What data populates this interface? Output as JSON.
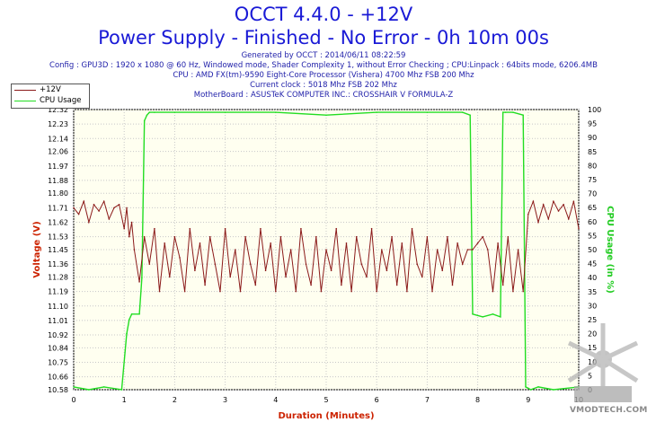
{
  "header": {
    "title": "OCCT 4.4.0 - +12V",
    "subtitle": "Power Supply - Finished - No Error - 0h 10m 00s",
    "info": [
      "Generated by OCCT : 2014/06/11 08:22:59",
      "Config : GPU3D : 1920 x 1080 @ 60 Hz, Windowed mode, Shader Complexity 1, without Error Checking ; CPU:Linpack : 64bits mode, 6206.4MB",
      "CPU : AMD FX(tm)-9590 Eight-Core Processor (Vishera) 4700 Mhz FSB 200 Mhz",
      "Current clock : 5018 Mhz FSB 202 Mhz",
      "MotherBoard : ASUSTeK COMPUTER INC.: CROSSHAIR V FORMULA-Z"
    ]
  },
  "legend": {
    "voltage": "+12V",
    "cpu": "CPU Usage"
  },
  "watermark": "VMODTECH.COM",
  "colors": {
    "title": "#1a1ad6",
    "voltage_line": "#8b1a1a",
    "cpu_line": "#22dd22",
    "plot_bg": "#fffff0",
    "axis_label_left": "#cc2200",
    "axis_label_right": "#22cc22"
  },
  "chart_data": {
    "type": "line",
    "xlabel": "Duration (Minutes)",
    "ylabel": "Voltage (V)",
    "y2label": "CPU Usage (in %)",
    "xlim": [
      0,
      10
    ],
    "ylim": [
      10.58,
      12.32
    ],
    "y2lim": [
      0,
      100
    ],
    "x_ticks": [
      0,
      1,
      2,
      3,
      4,
      5,
      6,
      7,
      8,
      9,
      10
    ],
    "y_ticks": [
      10.58,
      10.66,
      10.75,
      10.84,
      10.92,
      11.01,
      11.1,
      11.19,
      11.28,
      11.36,
      11.45,
      11.53,
      11.62,
      11.71,
      11.8,
      11.88,
      11.97,
      12.06,
      12.14,
      12.23,
      12.32
    ],
    "y_tick_labels": [
      "10.58",
      "10.66",
      "10.75",
      "10.84",
      "10.92",
      "11.01",
      "11.10",
      "11.19",
      "11.28",
      "11.36",
      "11.45",
      "11.53",
      "11.62",
      "11.71",
      "11.80",
      "11.88",
      "11.97",
      "12.06",
      "12.14",
      "12.23",
      "12.32"
    ],
    "y2_ticks": [
      0,
      5,
      10,
      15,
      20,
      25,
      30,
      35,
      40,
      45,
      50,
      55,
      60,
      65,
      70,
      75,
      80,
      85,
      90,
      95,
      100
    ],
    "grid": true,
    "legend_position": "top-left",
    "series": [
      {
        "name": "+12V",
        "axis": "left",
        "x": [
          0.0,
          0.1,
          0.2,
          0.3,
          0.4,
          0.5,
          0.6,
          0.7,
          0.8,
          0.9,
          1.0,
          1.05,
          1.1,
          1.15,
          1.2,
          1.3,
          1.4,
          1.5,
          1.6,
          1.7,
          1.8,
          1.9,
          2.0,
          2.1,
          2.2,
          2.3,
          2.4,
          2.5,
          2.6,
          2.7,
          2.8,
          2.9,
          3.0,
          3.1,
          3.2,
          3.3,
          3.4,
          3.5,
          3.6,
          3.7,
          3.8,
          3.9,
          4.0,
          4.1,
          4.2,
          4.3,
          4.4,
          4.5,
          4.6,
          4.7,
          4.8,
          4.9,
          5.0,
          5.1,
          5.2,
          5.3,
          5.4,
          5.5,
          5.6,
          5.7,
          5.8,
          5.9,
          6.0,
          6.1,
          6.2,
          6.3,
          6.4,
          6.5,
          6.6,
          6.7,
          6.8,
          6.9,
          7.0,
          7.1,
          7.2,
          7.3,
          7.4,
          7.5,
          7.6,
          7.7,
          7.8,
          7.9,
          8.0,
          8.1,
          8.2,
          8.3,
          8.4,
          8.5,
          8.6,
          8.7,
          8.8,
          8.9,
          9.0,
          9.1,
          9.2,
          9.3,
          9.4,
          9.5,
          9.6,
          9.7,
          9.8,
          9.9,
          10.0
        ],
        "values": [
          11.71,
          11.67,
          11.75,
          11.62,
          11.73,
          11.69,
          11.75,
          11.64,
          11.71,
          11.73,
          11.58,
          11.71,
          11.53,
          11.62,
          11.45,
          11.25,
          11.53,
          11.36,
          11.58,
          11.19,
          11.49,
          11.28,
          11.53,
          11.4,
          11.19,
          11.58,
          11.32,
          11.49,
          11.23,
          11.53,
          11.36,
          11.19,
          11.58,
          11.28,
          11.45,
          11.19,
          11.53,
          11.36,
          11.23,
          11.58,
          11.32,
          11.49,
          11.19,
          11.53,
          11.28,
          11.45,
          11.19,
          11.58,
          11.36,
          11.23,
          11.53,
          11.19,
          11.45,
          11.32,
          11.58,
          11.23,
          11.49,
          11.19,
          11.53,
          11.36,
          11.28,
          11.58,
          11.19,
          11.45,
          11.32,
          11.53,
          11.23,
          11.49,
          11.19,
          11.58,
          11.36,
          11.28,
          11.53,
          11.19,
          11.45,
          11.32,
          11.53,
          11.23,
          11.49,
          11.36,
          11.45,
          11.45,
          11.49,
          11.53,
          11.45,
          11.19,
          11.49,
          11.23,
          11.53,
          11.19,
          11.45,
          11.19,
          11.67,
          11.75,
          11.62,
          11.73,
          11.64,
          11.75,
          11.69,
          11.73,
          11.64,
          11.75,
          11.58
        ]
      },
      {
        "name": "CPU Usage",
        "axis": "right",
        "x": [
          0.0,
          0.3,
          0.6,
          0.95,
          1.05,
          1.1,
          1.15,
          1.3,
          1.35,
          1.4,
          1.45,
          1.5,
          1.6,
          2.0,
          3.0,
          4.0,
          5.0,
          6.0,
          7.0,
          7.7,
          7.85,
          7.9,
          8.1,
          8.3,
          8.45,
          8.5,
          8.55,
          8.7,
          8.9,
          8.95,
          9.05,
          9.2,
          9.5,
          10.0
        ],
        "values": [
          1,
          0,
          1,
          0,
          20,
          25,
          27,
          27,
          40,
          96,
          98,
          99,
          99,
          99,
          99,
          99,
          98,
          99,
          99,
          99,
          98,
          27,
          26,
          27,
          26,
          99,
          99,
          99,
          98,
          1,
          0,
          1,
          0,
          1
        ]
      }
    ]
  }
}
